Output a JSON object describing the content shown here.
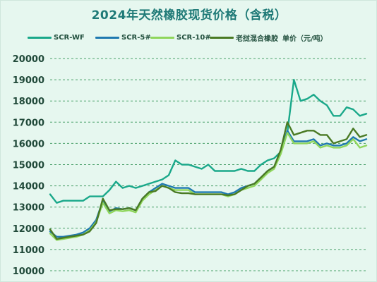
{
  "chart_data": {
    "type": "line",
    "title": "2024年天然橡胶现货价格（含税）",
    "unit_note": "单价（元/吨）",
    "ylim": [
      10000,
      20000
    ],
    "yticks": [
      "10000",
      "11000",
      "12000",
      "13000",
      "14000",
      "15000",
      "16000",
      "17000",
      "18000",
      "19000",
      "20000"
    ],
    "grid": "horizontal-dashed",
    "legend_placement": "top",
    "series": [
      {
        "name": "SCR-WF",
        "color": "#1aa88a",
        "values": [
          13600,
          13200,
          13300,
          13300,
          13300,
          13300,
          13500,
          13500,
          13500,
          13800,
          14200,
          13900,
          14000,
          13900,
          14000,
          14100,
          14200,
          14300,
          14500,
          15200,
          15000,
          15000,
          14900,
          14800,
          15000,
          14700,
          14700,
          14700,
          14700,
          14800,
          14700,
          14700,
          15000,
          15200,
          15300,
          15600,
          16500,
          19000,
          18000,
          18100,
          18300,
          18000,
          17800,
          17300,
          17300,
          17700,
          17600,
          17300,
          17400
        ]
      },
      {
        "name": "SCR-5#",
        "color": "#1f79b0",
        "values": [
          11850,
          11600,
          11600,
          11650,
          11700,
          11800,
          12000,
          12400,
          13300,
          12800,
          12950,
          12900,
          12950,
          12850,
          13400,
          13700,
          13900,
          14100,
          14000,
          13900,
          13900,
          13900,
          13700,
          13700,
          13700,
          13700,
          13700,
          13600,
          13700,
          13900,
          14000,
          14100,
          14400,
          14700,
          14900,
          15600,
          16600,
          16100,
          16100,
          16100,
          16200,
          15900,
          16000,
          15900,
          15900,
          16000,
          16300,
          16100,
          16200
        ]
      },
      {
        "name": "SCR-10#",
        "color": "#8fd65c",
        "values": [
          11750,
          11450,
          11500,
          11550,
          11600,
          11700,
          11900,
          12300,
          13200,
          12700,
          12850,
          12800,
          12850,
          12750,
          13300,
          13600,
          13800,
          14000,
          13900,
          13800,
          13800,
          13800,
          13600,
          13600,
          13600,
          13600,
          13600,
          13500,
          13600,
          13800,
          13900,
          14000,
          14300,
          14600,
          14800,
          15500,
          16500,
          16000,
          16000,
          16000,
          16100,
          15800,
          15900,
          15800,
          15800,
          15900,
          16200,
          15800,
          15900
        ]
      },
      {
        "name": "老挝混合橡胶",
        "color": "#4a7a24",
        "values": [
          11950,
          11500,
          11550,
          11600,
          11650,
          11700,
          11850,
          12250,
          13400,
          12850,
          12900,
          12900,
          12950,
          12850,
          13400,
          13700,
          13750,
          14000,
          13900,
          13700,
          13650,
          13650,
          13600,
          13600,
          13600,
          13600,
          13600,
          13550,
          13600,
          13800,
          14000,
          14100,
          14400,
          14700,
          14900,
          15700,
          17000,
          16400,
          16500,
          16600,
          16600,
          16400,
          16400,
          16000,
          16100,
          16200,
          16700,
          16300,
          16400
        ]
      }
    ]
  }
}
